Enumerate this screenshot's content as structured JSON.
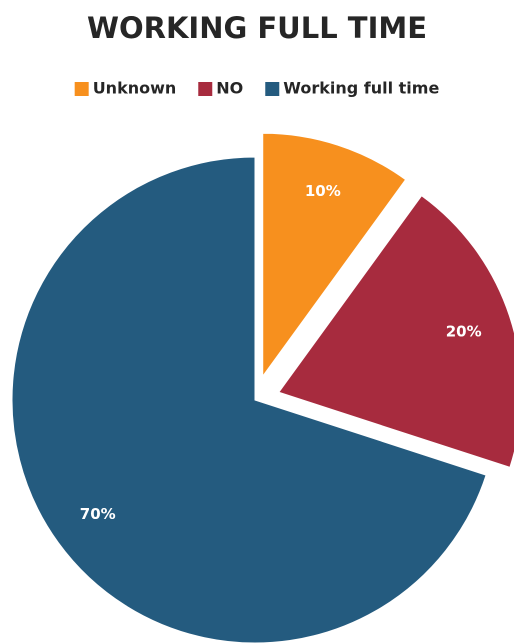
{
  "chart_data": {
    "type": "pie",
    "title": "WORKING FULL TIME",
    "categories": [
      "Unknown",
      "NO",
      "Working full time"
    ],
    "values": [
      10,
      20,
      70
    ],
    "value_labels": [
      "10%",
      "20%",
      "70%"
    ],
    "colors": [
      "#f7901e",
      "#a72b3e",
      "#245b7f"
    ],
    "legend": "top"
  }
}
